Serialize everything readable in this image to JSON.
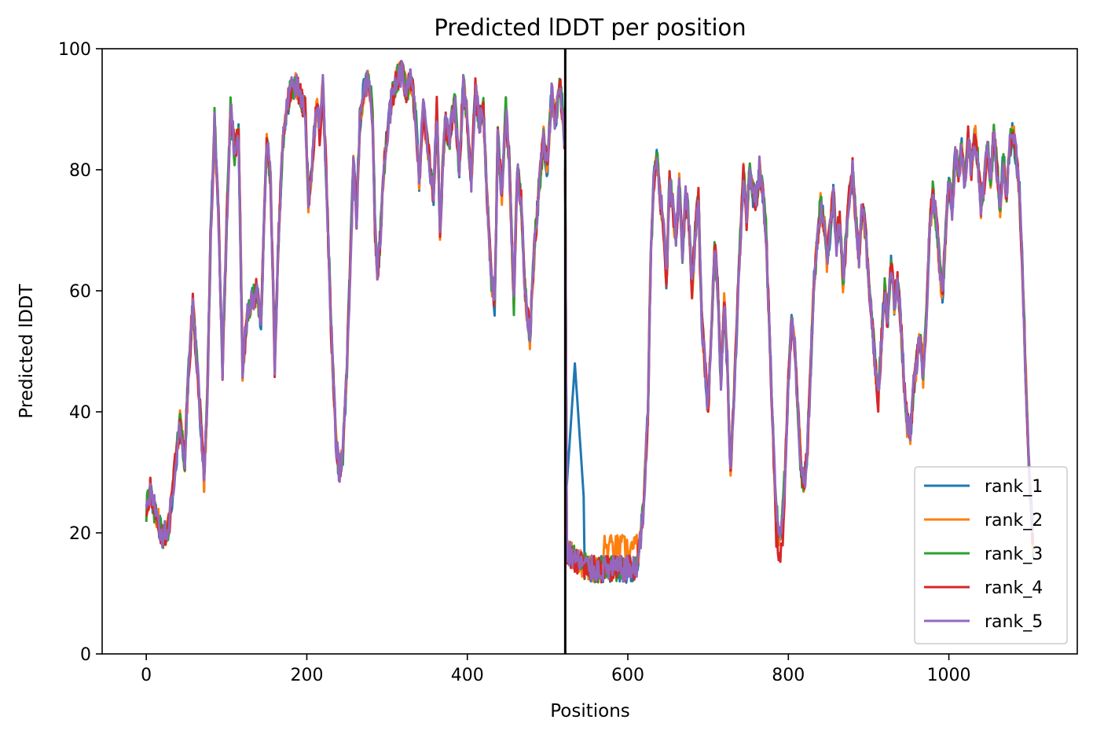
{
  "chart_data": {
    "type": "line",
    "title": "Predicted lDDT per position",
    "xlabel": "Positions",
    "ylabel": "Predicted lDDT",
    "xlim": [
      -55,
      1160
    ],
    "ylim": [
      0,
      100
    ],
    "xticks": [
      0,
      200,
      400,
      600,
      800,
      1000
    ],
    "yticks": [
      0,
      20,
      40,
      60,
      80,
      100
    ],
    "xtick_labels": [
      "0",
      "200",
      "400",
      "600",
      "800",
      "1000"
    ],
    "ytick_labels": [
      "0",
      "20",
      "40",
      "60",
      "80",
      "100"
    ],
    "grid": false,
    "legend_position": "bottom-right",
    "chain_break": 522,
    "x_max": 1105,
    "series": [
      {
        "name": "rank_1",
        "color": "#1f77b4"
      },
      {
        "name": "rank_2",
        "color": "#ff7f0e"
      },
      {
        "name": "rank_3",
        "color": "#2ca02c"
      },
      {
        "name": "rank_4",
        "color": "#d62728"
      },
      {
        "name": "rank_5",
        "color": "#9467bd"
      }
    ],
    "base_profile": [
      [
        0,
        24
      ],
      [
        5,
        27
      ],
      [
        10,
        24
      ],
      [
        15,
        22
      ],
      [
        20,
        19
      ],
      [
        28,
        21
      ],
      [
        35,
        30
      ],
      [
        42,
        38
      ],
      [
        48,
        32
      ],
      [
        52,
        45
      ],
      [
        58,
        58
      ],
      [
        62,
        50
      ],
      [
        68,
        38
      ],
      [
        72,
        29
      ],
      [
        76,
        42
      ],
      [
        80,
        68
      ],
      [
        85,
        88
      ],
      [
        90,
        72
      ],
      [
        95,
        47
      ],
      [
        100,
        70
      ],
      [
        105,
        90
      ],
      [
        110,
        83
      ],
      [
        115,
        86
      ],
      [
        120,
        47
      ],
      [
        125,
        55
      ],
      [
        130,
        58
      ],
      [
        138,
        60
      ],
      [
        143,
        55
      ],
      [
        150,
        85
      ],
      [
        155,
        78
      ],
      [
        160,
        48
      ],
      [
        165,
        70
      ],
      [
        170,
        84
      ],
      [
        175,
        90
      ],
      [
        180,
        93
      ],
      [
        186,
        94
      ],
      [
        192,
        92
      ],
      [
        198,
        90
      ],
      [
        202,
        75
      ],
      [
        206,
        80
      ],
      [
        212,
        91
      ],
      [
        216,
        86
      ],
      [
        220,
        94
      ],
      [
        224,
        80
      ],
      [
        230,
        55
      ],
      [
        236,
        36
      ],
      [
        240,
        30
      ],
      [
        245,
        33
      ],
      [
        250,
        47
      ],
      [
        255,
        68
      ],
      [
        258,
        82
      ],
      [
        262,
        72
      ],
      [
        266,
        88
      ],
      [
        272,
        94
      ],
      [
        278,
        95
      ],
      [
        282,
        89
      ],
      [
        285,
        70
      ],
      [
        288,
        62
      ],
      [
        292,
        70
      ],
      [
        296,
        80
      ],
      [
        300,
        86
      ],
      [
        306,
        92
      ],
      [
        312,
        95
      ],
      [
        318,
        96
      ],
      [
        325,
        93
      ],
      [
        330,
        95
      ],
      [
        336,
        88
      ],
      [
        340,
        78
      ],
      [
        345,
        90
      ],
      [
        352,
        82
      ],
      [
        358,
        76
      ],
      [
        362,
        90
      ],
      [
        366,
        70
      ],
      [
        372,
        88
      ],
      [
        378,
        85
      ],
      [
        384,
        92
      ],
      [
        390,
        80
      ],
      [
        395,
        95
      ],
      [
        400,
        88
      ],
      [
        405,
        78
      ],
      [
        410,
        93
      ],
      [
        415,
        88
      ],
      [
        420,
        90
      ],
      [
        425,
        75
      ],
      [
        430,
        62
      ],
      [
        434,
        58
      ],
      [
        438,
        85
      ],
      [
        443,
        76
      ],
      [
        448,
        90
      ],
      [
        452,
        82
      ],
      [
        458,
        58
      ],
      [
        462,
        80
      ],
      [
        467,
        75
      ],
      [
        472,
        60
      ],
      [
        478,
        52
      ],
      [
        484,
        68
      ],
      [
        490,
        78
      ],
      [
        495,
        85
      ],
      [
        500,
        80
      ],
      [
        505,
        93
      ],
      [
        510,
        88
      ],
      [
        515,
        94
      ],
      [
        520,
        88
      ],
      [
        522,
        80
      ],
      [
        524,
        17
      ],
      [
        532,
        16
      ],
      [
        540,
        15
      ],
      [
        555,
        14
      ],
      [
        570,
        14
      ],
      [
        585,
        14
      ],
      [
        600,
        14
      ],
      [
        610,
        14
      ],
      [
        615,
        18
      ],
      [
        620,
        25
      ],
      [
        625,
        40
      ],
      [
        628,
        62
      ],
      [
        632,
        78
      ],
      [
        636,
        82
      ],
      [
        640,
        76
      ],
      [
        645,
        70
      ],
      [
        648,
        62
      ],
      [
        652,
        78
      ],
      [
        656,
        74
      ],
      [
        660,
        68
      ],
      [
        664,
        78
      ],
      [
        668,
        66
      ],
      [
        672,
        76
      ],
      [
        676,
        72
      ],
      [
        680,
        60
      ],
      [
        684,
        70
      ],
      [
        688,
        75
      ],
      [
        692,
        55
      ],
      [
        696,
        48
      ],
      [
        700,
        40
      ],
      [
        704,
        52
      ],
      [
        708,
        68
      ],
      [
        712,
        60
      ],
      [
        716,
        45
      ],
      [
        720,
        58
      ],
      [
        724,
        48
      ],
      [
        728,
        30
      ],
      [
        732,
        42
      ],
      [
        736,
        55
      ],
      [
        740,
        68
      ],
      [
        744,
        79
      ],
      [
        748,
        72
      ],
      [
        752,
        80
      ],
      [
        756,
        76
      ],
      [
        760,
        75
      ],
      [
        764,
        80
      ],
      [
        768,
        76
      ],
      [
        772,
        70
      ],
      [
        776,
        55
      ],
      [
        780,
        40
      ],
      [
        784,
        25
      ],
      [
        788,
        20
      ],
      [
        792,
        22
      ],
      [
        796,
        30
      ],
      [
        800,
        45
      ],
      [
        804,
        55
      ],
      [
        808,
        50
      ],
      [
        812,
        40
      ],
      [
        816,
        30
      ],
      [
        820,
        28
      ],
      [
        824,
        35
      ],
      [
        828,
        48
      ],
      [
        832,
        62
      ],
      [
        836,
        68
      ],
      [
        840,
        74
      ],
      [
        844,
        72
      ],
      [
        848,
        65
      ],
      [
        852,
        70
      ],
      [
        856,
        76
      ],
      [
        860,
        68
      ],
      [
        864,
        72
      ],
      [
        868,
        62
      ],
      [
        872,
        68
      ],
      [
        876,
        76
      ],
      [
        880,
        80
      ],
      [
        884,
        72
      ],
      [
        888,
        66
      ],
      [
        892,
        74
      ],
      [
        896,
        70
      ],
      [
        900,
        62
      ],
      [
        904,
        55
      ],
      [
        908,
        48
      ],
      [
        912,
        42
      ],
      [
        916,
        52
      ],
      [
        920,
        60
      ],
      [
        924,
        55
      ],
      [
        928,
        65
      ],
      [
        932,
        58
      ],
      [
        936,
        62
      ],
      [
        940,
        55
      ],
      [
        944,
        45
      ],
      [
        948,
        38
      ],
      [
        952,
        36
      ],
      [
        956,
        44
      ],
      [
        960,
        48
      ],
      [
        964,
        52
      ],
      [
        968,
        46
      ],
      [
        972,
        56
      ],
      [
        976,
        70
      ],
      [
        980,
        76
      ],
      [
        984,
        72
      ],
      [
        988,
        65
      ],
      [
        992,
        58
      ],
      [
        996,
        70
      ],
      [
        1000,
        78
      ],
      [
        1004,
        74
      ],
      [
        1008,
        82
      ],
      [
        1012,
        80
      ],
      [
        1016,
        83
      ],
      [
        1020,
        78
      ],
      [
        1024,
        85
      ],
      [
        1028,
        80
      ],
      [
        1032,
        86
      ],
      [
        1036,
        82
      ],
      [
        1040,
        74
      ],
      [
        1044,
        78
      ],
      [
        1048,
        84
      ],
      [
        1052,
        78
      ],
      [
        1056,
        86
      ],
      [
        1060,
        80
      ],
      [
        1064,
        74
      ],
      [
        1068,
        82
      ],
      [
        1072,
        76
      ],
      [
        1076,
        84
      ],
      [
        1080,
        86
      ],
      [
        1084,
        82
      ],
      [
        1088,
        76
      ],
      [
        1092,
        62
      ],
      [
        1096,
        45
      ],
      [
        1100,
        30
      ],
      [
        1105,
        18
      ]
    ]
  }
}
